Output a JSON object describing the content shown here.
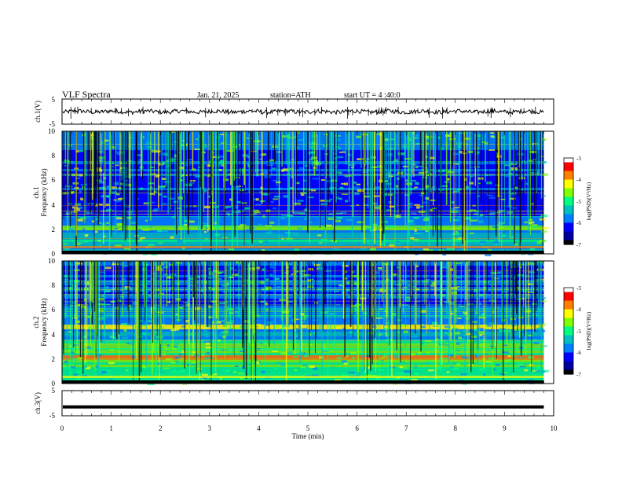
{
  "header": {
    "title": "VLF  Spectra",
    "date": "Jan. 21, 2025",
    "station": "station=ATH",
    "start": "start  UT  =   4  :40:0"
  },
  "chart_data": [
    {
      "id": "ch1-waveform",
      "type": "line",
      "ylabel": "ch.1(V)",
      "yticks": [
        "5",
        "-5"
      ],
      "ylim": [
        -5,
        5
      ],
      "xlim": [
        0,
        10
      ],
      "baseline": 0,
      "amplitude": 1.2,
      "end_time": 9.8
    },
    {
      "id": "ch1-spectrogram",
      "type": "heatmap",
      "ylabel": "ch.1",
      "ylabel2": "Frequency (kHz)",
      "yticks": [
        "10",
        "8",
        "6",
        "4",
        "2",
        "0"
      ],
      "ylim": [
        0,
        10
      ],
      "xlim": [
        0,
        10
      ],
      "end_time": 9.8,
      "colorbar": {
        "label": "log(PSD)(V²/Hz)",
        "ticks": [
          "-3",
          "-4",
          "-5",
          "-6",
          "-7"
        ],
        "range": [
          -7,
          -3
        ]
      }
    },
    {
      "id": "ch2-spectrogram",
      "type": "heatmap",
      "ylabel": "ch.2",
      "ylabel2": "Frequency (kHz)",
      "yticks": [
        "10",
        "8",
        "6",
        "4",
        "2",
        "0"
      ],
      "ylim": [
        0,
        10
      ],
      "xlim": [
        0,
        10
      ],
      "end_time": 9.8,
      "colorbar": {
        "label": "log(PSD)(V²/Hz)",
        "ticks": [
          "-3",
          "-4",
          "-5",
          "-6",
          "-7"
        ],
        "range": [
          -7,
          -3
        ]
      }
    },
    {
      "id": "ch3-waveform",
      "type": "line",
      "ylabel": "ch.3(V)",
      "yticks": [
        "5",
        "-5"
      ],
      "ylim": [
        -5,
        5
      ],
      "xlim": [
        0,
        10
      ],
      "baseline": -1.5,
      "end_time": 9.8
    }
  ],
  "xaxis": {
    "label": "Time  (min)",
    "ticks": [
      "0",
      "1",
      "2",
      "3",
      "4",
      "5",
      "6",
      "7",
      "8",
      "9",
      "10"
    ]
  },
  "colors": {
    "colormap": [
      "#000000",
      "#0000a0",
      "#0000ff",
      "#0080ff",
      "#00c0c0",
      "#00ff80",
      "#80ff00",
      "#ffff00",
      "#ff8000",
      "#ff0000",
      "#ffffff"
    ]
  }
}
